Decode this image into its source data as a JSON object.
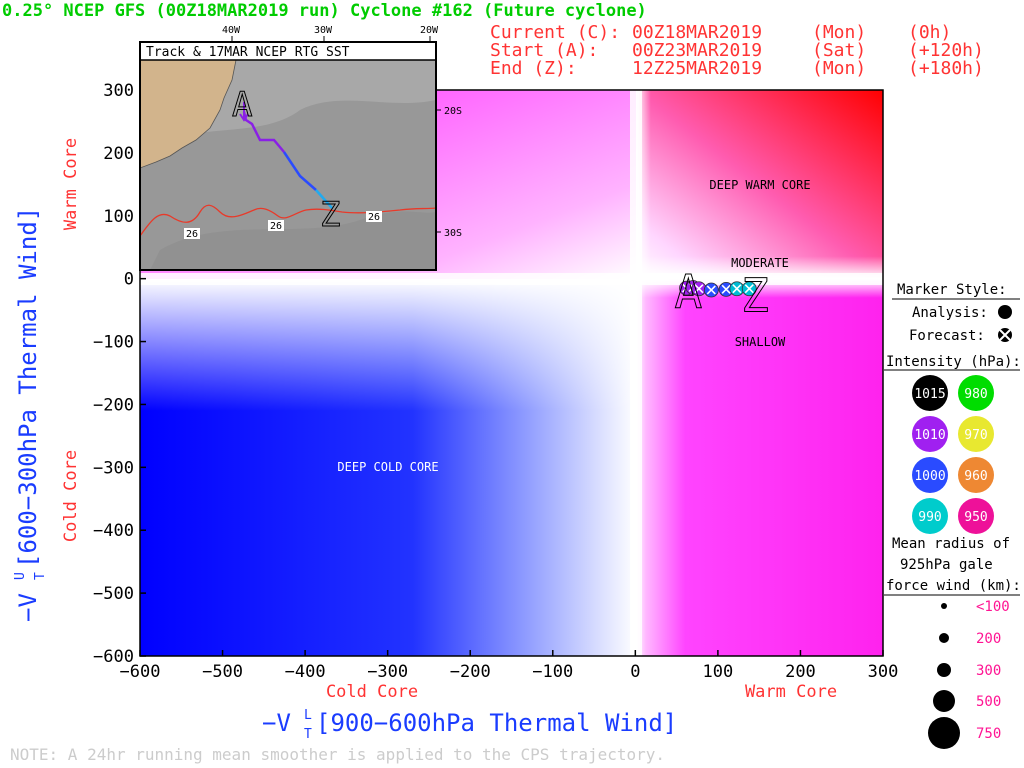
{
  "header": {
    "title": "0.25° NCEP GFS (00Z18MAR2019 run) Cyclone #162 (Future cyclone)",
    "title_color": "#00cc00",
    "info_color": "#ff3333",
    "current": {
      "label": "Current (C):",
      "time": "00Z18MAR2019",
      "day": "(Mon)",
      "offset": "(0h)"
    },
    "start": {
      "label": "Start (A):",
      "time": "00Z23MAR2019",
      "day": "(Sat)",
      "offset": "(+120h)"
    },
    "end": {
      "label": "End (Z):",
      "time": "12Z25MAR2019",
      "day": "(Mon)",
      "offset": "(+180h)"
    }
  },
  "axes": {
    "y_title_left": "−V",
    "y_sup": "U",
    "y_sub": "T",
    "y_title_rest": " [600−300hPa Thermal Wind]",
    "y_warm": "Warm Core",
    "y_cold": "Cold Core",
    "x_title_left": "−V",
    "x_sup": "L",
    "x_sub": "T",
    "x_title_rest": " [900−600hPa Thermal Wind]",
    "x_cold": "Cold Core",
    "x_warm": "Warm Core",
    "axis_title_color": "#1a3cff",
    "core_label_color": "#ff3333"
  },
  "regions": {
    "deep_warm": "DEEP WARM CORE",
    "deep_cold": "DEEP COLD CORE",
    "moderate": "MODERATE",
    "shallow": "SHALLOW"
  },
  "chart_data": {
    "type": "scatter",
    "title": "0.25° NCEP GFS (00Z18MAR2019 run) Cyclone #162 (Future cyclone)",
    "xlabel": "−VTL [900−600hPa Thermal Wind]",
    "ylabel": "−VTU [600−300hPa Thermal Wind]",
    "xlim": [
      -600,
      300
    ],
    "ylim": [
      -600,
      300
    ],
    "x_ticks": [
      -600,
      -500,
      -400,
      -300,
      -200,
      -100,
      0,
      100,
      200,
      300
    ],
    "y_ticks": [
      300,
      200,
      100,
      0,
      -100,
      -200,
      -300,
      -400,
      -500,
      -600
    ],
    "x_tick_labels": [
      "−600",
      "−500",
      "−400",
      "−300",
      "−200",
      "−100",
      "0",
      "100",
      "200",
      "300"
    ],
    "y_tick_labels": [
      "300",
      "200",
      "100",
      "0",
      "−100",
      "−200",
      "−300",
      "−400",
      "−500",
      "−600"
    ],
    "series": [
      {
        "points": [
          {
            "x": 62,
            "y": -15,
            "color": "#a020f0",
            "style": "forecast"
          },
          {
            "x": 70,
            "y": -14,
            "color": "#a020f0",
            "style": "forecast"
          },
          {
            "x": 77,
            "y": -16,
            "color": "#a020f0",
            "style": "forecast"
          },
          {
            "x": 92,
            "y": -18,
            "color": "#2a4bff",
            "style": "forecast"
          },
          {
            "x": 110,
            "y": -17,
            "color": "#2a4bff",
            "style": "forecast"
          },
          {
            "x": 123,
            "y": -16,
            "color": "#00bcd4",
            "style": "forecast"
          },
          {
            "x": 138,
            "y": -16,
            "color": "#00bcd4",
            "style": "forecast"
          }
        ],
        "start_marker": {
          "label": "A",
          "x": 62,
          "y": -15
        },
        "end_marker": {
          "label": "Z",
          "x": 150,
          "y": -14
        }
      }
    ],
    "grid": false
  },
  "inset": {
    "title": "Track & 17MAR NCEP RTG SST",
    "lon_labels": [
      "40W",
      "30W",
      "20W"
    ],
    "lat_labels": [
      "20S",
      "30S"
    ],
    "sst_labels": [
      "26",
      "26",
      "26"
    ]
  },
  "legend": {
    "marker_style_title": "Marker Style:",
    "analysis_label": "Analysis:",
    "forecast_label": "Forecast:",
    "intensity_title": "Intensity (hPa):",
    "intensity": [
      {
        "value": "1015",
        "color": "#000000"
      },
      {
        "value": "980",
        "color": "#00dd00"
      },
      {
        "value": "1010",
        "color": "#a020f0"
      },
      {
        "value": "970",
        "color": "#e8e830"
      },
      {
        "value": "1000",
        "color": "#2a4bff"
      },
      {
        "value": "960",
        "color": "#ee8833"
      },
      {
        "value": "990",
        "color": "#00cccc"
      },
      {
        "value": "950",
        "color": "#ee1199"
      }
    ],
    "radius_title_1": "Mean radius of",
    "radius_title_2": "925hPa gale",
    "radius_title_3": "force wind (km):",
    "radius_items": [
      "<100",
      "200",
      "300",
      "500",
      "750"
    ],
    "radius_color": "#ff1493"
  },
  "footer": {
    "note": "NOTE:  A 24hr running mean smoother is applied to the CPS trajectory."
  }
}
